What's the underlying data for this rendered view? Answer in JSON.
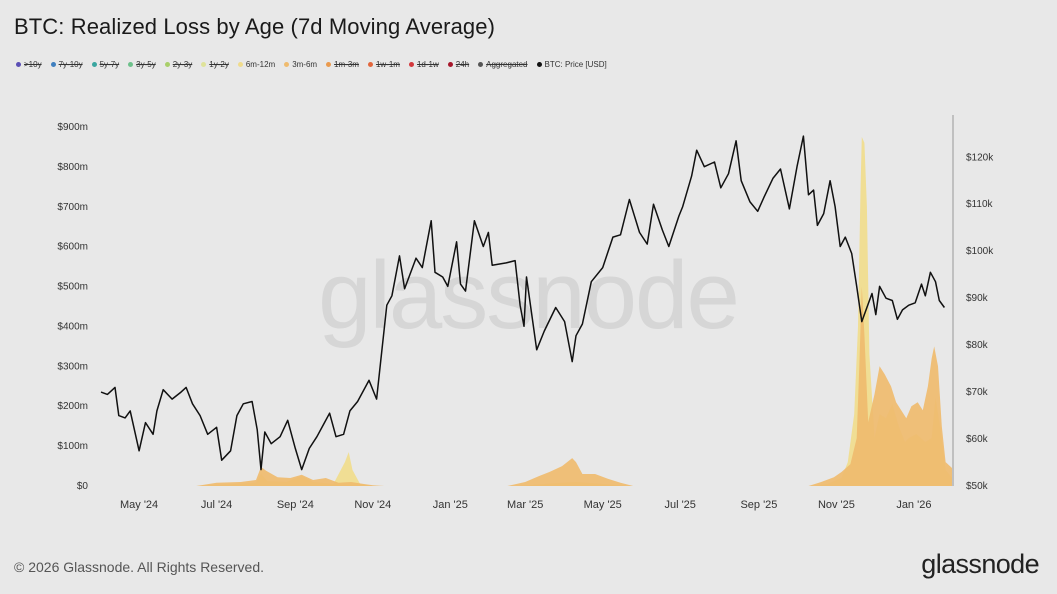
{
  "header": {
    "title": "BTC: Realized Loss by Age (7d Moving Average)"
  },
  "legend": [
    {
      "label": ">10y",
      "color": "#5b4fb5",
      "enabled": false
    },
    {
      "label": "7y-10y",
      "color": "#3f7fbf",
      "enabled": false
    },
    {
      "label": "5y-7y",
      "color": "#3aa6a0",
      "enabled": false
    },
    {
      "label": "3y-5y",
      "color": "#6cc08a",
      "enabled": false
    },
    {
      "label": "2y-3y",
      "color": "#a9cf6a",
      "enabled": false
    },
    {
      "label": "1y-2y",
      "color": "#dfe39a",
      "enabled": false
    },
    {
      "label": "6m-12m",
      "color": "#f0dc8c",
      "enabled": true
    },
    {
      "label": "3m-6m",
      "color": "#efbb6e",
      "enabled": true
    },
    {
      "label": "1m-3m",
      "color": "#ea9a4e",
      "enabled": false
    },
    {
      "label": "1w-1m",
      "color": "#e2663c",
      "enabled": false
    },
    {
      "label": "1d-1w",
      "color": "#d3383c",
      "enabled": false
    },
    {
      "label": "24h",
      "color": "#a6162a",
      "enabled": false
    },
    {
      "label": "Aggregated",
      "color": "#555555",
      "enabled": false
    },
    {
      "label": "BTC: Price [USD]",
      "color": "#111111",
      "enabled": true
    }
  ],
  "watermark": "glassnode",
  "footer": {
    "copyright": "© 2026 Glassnode. All Rights Reserved.",
    "brand": "glassnode"
  },
  "chart_data": {
    "type": "area",
    "x_range": [
      "2024-04-01",
      "2026-01-31"
    ],
    "x_ticks": [
      "May '24",
      "Jul '24",
      "Sep '24",
      "Nov '24",
      "Jan '25",
      "Mar '25",
      "May '25",
      "Jul '25",
      "Sep '25",
      "Nov '25",
      "Jan '26"
    ],
    "x_tick_dates": [
      "2024-05-01",
      "2024-07-01",
      "2024-09-01",
      "2024-11-01",
      "2025-01-01",
      "2025-03-01",
      "2025-05-01",
      "2025-07-01",
      "2025-09-01",
      "2025-11-01",
      "2026-01-01"
    ],
    "y_left": {
      "range": [
        0,
        930
      ],
      "ticks": [
        "$0",
        "$100m",
        "$200m",
        "$300m",
        "$400m",
        "$500m",
        "$600m",
        "$700m",
        "$800m",
        "$900m"
      ],
      "tick_values": [
        0,
        100,
        200,
        300,
        400,
        500,
        600,
        700,
        800,
        900
      ]
    },
    "y_right": {
      "range": [
        50000,
        129000
      ],
      "ticks": [
        "$50k",
        "$60k",
        "$70k",
        "$80k",
        "$90k",
        "$100k",
        "$110k",
        "$120k"
      ],
      "tick_values": [
        50000,
        60000,
        70000,
        80000,
        90000,
        100000,
        110000,
        120000
      ]
    },
    "grid": false,
    "series": [
      {
        "name": "6m-12m",
        "color": "#f0dc8c",
        "axis": "left",
        "points": [
          [
            "2024-04-01",
            0
          ],
          [
            "2024-06-15",
            0
          ],
          [
            "2024-07-15",
            5
          ],
          [
            "2024-08-01",
            8
          ],
          [
            "2024-08-05",
            30
          ],
          [
            "2024-08-10",
            12
          ],
          [
            "2024-08-25",
            10
          ],
          [
            "2024-09-06",
            25
          ],
          [
            "2024-09-15",
            10
          ],
          [
            "2024-10-01",
            5
          ],
          [
            "2024-10-10",
            60
          ],
          [
            "2024-10-13",
            85
          ],
          [
            "2024-10-16",
            40
          ],
          [
            "2024-10-22",
            5
          ],
          [
            "2024-11-01",
            0
          ],
          [
            "2025-02-25",
            0
          ],
          [
            "2025-03-20",
            6
          ],
          [
            "2025-04-10",
            10
          ],
          [
            "2025-05-01",
            5
          ],
          [
            "2025-05-20",
            0
          ],
          [
            "2025-10-15",
            0
          ],
          [
            "2025-10-25",
            5
          ],
          [
            "2025-11-05",
            20
          ],
          [
            "2025-11-10",
            60
          ],
          [
            "2025-11-15",
            180
          ],
          [
            "2025-11-18",
            400
          ],
          [
            "2025-11-20",
            740
          ],
          [
            "2025-11-21",
            875
          ],
          [
            "2025-11-23",
            860
          ],
          [
            "2025-11-25",
            700
          ],
          [
            "2025-11-27",
            330
          ],
          [
            "2025-12-01",
            120
          ],
          [
            "2025-12-05",
            180
          ],
          [
            "2025-12-10",
            170
          ],
          [
            "2025-12-15",
            205
          ],
          [
            "2025-12-20",
            150
          ],
          [
            "2025-12-25",
            110
          ],
          [
            "2025-12-28",
            120
          ],
          [
            "2026-01-03",
            130
          ],
          [
            "2026-01-10",
            110
          ],
          [
            "2026-01-15",
            120
          ],
          [
            "2026-01-18",
            220
          ],
          [
            "2026-01-22",
            140
          ],
          [
            "2026-01-26",
            40
          ],
          [
            "2026-01-31",
            20
          ]
        ]
      },
      {
        "name": "3m-6m",
        "color": "#efbb6e",
        "axis": "left",
        "points": [
          [
            "2024-04-01",
            0
          ],
          [
            "2024-06-15",
            0
          ],
          [
            "2024-07-01",
            8
          ],
          [
            "2024-07-20",
            10
          ],
          [
            "2024-08-01",
            15
          ],
          [
            "2024-08-05",
            48
          ],
          [
            "2024-08-09",
            38
          ],
          [
            "2024-08-18",
            22
          ],
          [
            "2024-08-28",
            20
          ],
          [
            "2024-09-06",
            28
          ],
          [
            "2024-09-15",
            15
          ],
          [
            "2024-09-25",
            20
          ],
          [
            "2024-10-05",
            8
          ],
          [
            "2024-10-15",
            10
          ],
          [
            "2024-10-25",
            5
          ],
          [
            "2024-11-01",
            2
          ],
          [
            "2024-11-10",
            0
          ],
          [
            "2025-02-15",
            0
          ],
          [
            "2025-03-01",
            10
          ],
          [
            "2025-03-12",
            25
          ],
          [
            "2025-03-20",
            35
          ],
          [
            "2025-03-30",
            50
          ],
          [
            "2025-04-07",
            70
          ],
          [
            "2025-04-10",
            60
          ],
          [
            "2025-04-15",
            30
          ],
          [
            "2025-04-25",
            30
          ],
          [
            "2025-05-05",
            18
          ],
          [
            "2025-05-15",
            8
          ],
          [
            "2025-05-25",
            0
          ],
          [
            "2025-10-10",
            0
          ],
          [
            "2025-10-20",
            10
          ],
          [
            "2025-10-30",
            22
          ],
          [
            "2025-11-05",
            35
          ],
          [
            "2025-11-12",
            55
          ],
          [
            "2025-11-17",
            120
          ],
          [
            "2025-11-19",
            300
          ],
          [
            "2025-11-21",
            500
          ],
          [
            "2025-11-23",
            380
          ],
          [
            "2025-11-26",
            160
          ],
          [
            "2025-12-01",
            230
          ],
          [
            "2025-12-05",
            300
          ],
          [
            "2025-12-09",
            280
          ],
          [
            "2025-12-14",
            250
          ],
          [
            "2025-12-18",
            210
          ],
          [
            "2025-12-22",
            190
          ],
          [
            "2025-12-26",
            170
          ],
          [
            "2025-12-30",
            200
          ],
          [
            "2026-01-04",
            210
          ],
          [
            "2026-01-08",
            190
          ],
          [
            "2026-01-12",
            250
          ],
          [
            "2026-01-15",
            320
          ],
          [
            "2026-01-17",
            350
          ],
          [
            "2026-01-20",
            300
          ],
          [
            "2026-01-23",
            150
          ],
          [
            "2026-01-26",
            60
          ],
          [
            "2026-01-31",
            45
          ]
        ]
      },
      {
        "name": "BTC: Price [USD]",
        "color": "#111111",
        "axis": "right",
        "points": [
          [
            "2024-04-01",
            70000
          ],
          [
            "2024-04-06",
            69500
          ],
          [
            "2024-04-12",
            71000
          ],
          [
            "2024-04-15",
            65000
          ],
          [
            "2024-04-20",
            64500
          ],
          [
            "2024-04-24",
            66000
          ],
          [
            "2024-05-01",
            57500
          ],
          [
            "2024-05-06",
            63500
          ],
          [
            "2024-05-12",
            61000
          ],
          [
            "2024-05-15",
            66000
          ],
          [
            "2024-05-20",
            70500
          ],
          [
            "2024-05-27",
            68500
          ],
          [
            "2024-06-03",
            70000
          ],
          [
            "2024-06-07",
            71000
          ],
          [
            "2024-06-12",
            67500
          ],
          [
            "2024-06-18",
            65000
          ],
          [
            "2024-06-24",
            61000
          ],
          [
            "2024-07-01",
            62500
          ],
          [
            "2024-07-05",
            55500
          ],
          [
            "2024-07-12",
            57500
          ],
          [
            "2024-07-17",
            65000
          ],
          [
            "2024-07-22",
            67500
          ],
          [
            "2024-07-29",
            68000
          ],
          [
            "2024-08-02",
            62000
          ],
          [
            "2024-08-05",
            53500
          ],
          [
            "2024-08-08",
            61500
          ],
          [
            "2024-08-13",
            59000
          ],
          [
            "2024-08-20",
            60500
          ],
          [
            "2024-08-26",
            64000
          ],
          [
            "2024-09-01",
            58000
          ],
          [
            "2024-09-06",
            53500
          ],
          [
            "2024-09-12",
            58000
          ],
          [
            "2024-09-18",
            60500
          ],
          [
            "2024-09-24",
            63500
          ],
          [
            "2024-09-28",
            65500
          ],
          [
            "2024-10-03",
            60500
          ],
          [
            "2024-10-09",
            61000
          ],
          [
            "2024-10-14",
            66000
          ],
          [
            "2024-10-20",
            68000
          ],
          [
            "2024-10-29",
            72500
          ],
          [
            "2024-11-04",
            68500
          ],
          [
            "2024-11-07",
            76000
          ],
          [
            "2024-11-12",
            88500
          ],
          [
            "2024-11-16",
            90500
          ],
          [
            "2024-11-22",
            99000
          ],
          [
            "2024-11-26",
            92000
          ],
          [
            "2024-12-05",
            98500
          ],
          [
            "2024-12-10",
            96500
          ],
          [
            "2024-12-17",
            106500
          ],
          [
            "2024-12-20",
            95500
          ],
          [
            "2024-12-26",
            94500
          ],
          [
            "2024-12-30",
            92500
          ],
          [
            "2025-01-06",
            102000
          ],
          [
            "2025-01-09",
            93000
          ],
          [
            "2025-01-13",
            91500
          ],
          [
            "2025-01-20",
            106500
          ],
          [
            "2025-01-27",
            101000
          ],
          [
            "2025-01-31",
            104000
          ],
          [
            "2025-02-03",
            97000
          ],
          [
            "2025-02-14",
            97500
          ],
          [
            "2025-02-21",
            98000
          ],
          [
            "2025-02-25",
            88500
          ],
          [
            "2025-02-28",
            84000
          ],
          [
            "2025-03-02",
            94500
          ],
          [
            "2025-03-10",
            79000
          ],
          [
            "2025-03-16",
            83000
          ],
          [
            "2025-03-25",
            88000
          ],
          [
            "2025-04-01",
            85000
          ],
          [
            "2025-04-07",
            76500
          ],
          [
            "2025-04-10",
            82000
          ],
          [
            "2025-04-15",
            84500
          ],
          [
            "2025-04-22",
            93500
          ],
          [
            "2025-05-01",
            96500
          ],
          [
            "2025-05-09",
            103000
          ],
          [
            "2025-05-15",
            103500
          ],
          [
            "2025-05-22",
            111000
          ],
          [
            "2025-05-30",
            104000
          ],
          [
            "2025-06-05",
            101500
          ],
          [
            "2025-06-10",
            110000
          ],
          [
            "2025-06-17",
            104500
          ],
          [
            "2025-06-22",
            101000
          ],
          [
            "2025-06-30",
            107500
          ],
          [
            "2025-07-03",
            109500
          ],
          [
            "2025-07-10",
            116000
          ],
          [
            "2025-07-14",
            121500
          ],
          [
            "2025-07-20",
            118000
          ],
          [
            "2025-07-28",
            119000
          ],
          [
            "2025-08-02",
            113500
          ],
          [
            "2025-08-08",
            116500
          ],
          [
            "2025-08-14",
            123500
          ],
          [
            "2025-08-18",
            115000
          ],
          [
            "2025-08-25",
            110500
          ],
          [
            "2025-08-31",
            108500
          ],
          [
            "2025-09-05",
            111500
          ],
          [
            "2025-09-12",
            115500
          ],
          [
            "2025-09-18",
            117500
          ],
          [
            "2025-09-25",
            109000
          ],
          [
            "2025-10-01",
            118000
          ],
          [
            "2025-10-06",
            124500
          ],
          [
            "2025-10-10",
            112000
          ],
          [
            "2025-10-14",
            113000
          ],
          [
            "2025-10-17",
            105500
          ],
          [
            "2025-10-22",
            108000
          ],
          [
            "2025-10-27",
            115000
          ],
          [
            "2025-10-31",
            109500
          ],
          [
            "2025-11-04",
            101000
          ],
          [
            "2025-11-08",
            103000
          ],
          [
            "2025-11-13",
            99500
          ],
          [
            "2025-11-17",
            92500
          ],
          [
            "2025-11-21",
            85000
          ],
          [
            "2025-11-25",
            88000
          ],
          [
            "2025-11-29",
            91000
          ],
          [
            "2025-12-02",
            86500
          ],
          [
            "2025-12-05",
            92500
          ],
          [
            "2025-12-10",
            90000
          ],
          [
            "2025-12-15",
            89500
          ],
          [
            "2025-12-19",
            85500
          ],
          [
            "2025-12-23",
            87500
          ],
          [
            "2025-12-28",
            88500
          ],
          [
            "2026-01-02",
            89000
          ],
          [
            "2026-01-07",
            93000
          ],
          [
            "2026-01-10",
            90500
          ],
          [
            "2026-01-14",
            95500
          ],
          [
            "2026-01-18",
            93500
          ],
          [
            "2026-01-21",
            89500
          ],
          [
            "2026-01-25",
            88000
          ]
        ]
      }
    ]
  }
}
